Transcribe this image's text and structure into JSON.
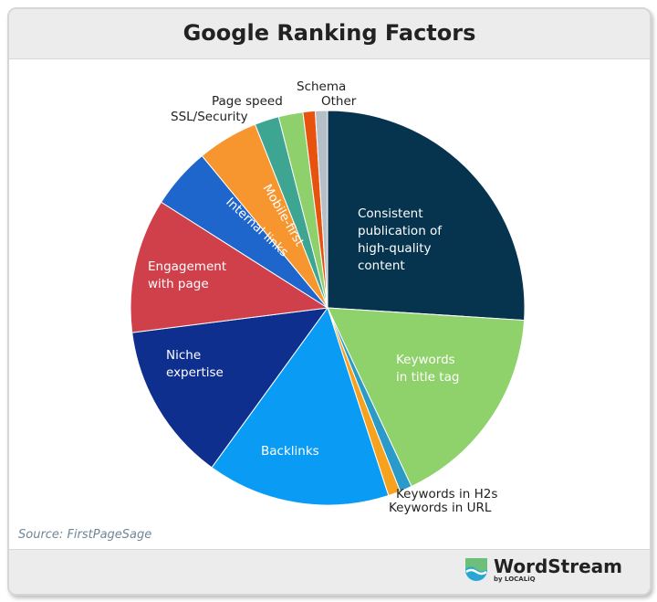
{
  "chart_data": {
    "type": "pie",
    "title": "Google Ranking Factors",
    "source": "Source: FirstPageSage",
    "start_angle": "12 o'clock, clockwise",
    "slices": [
      {
        "label": "Consistent publication of high-quality content",
        "value": 26,
        "color": "#06344f",
        "label_position": "inside"
      },
      {
        "label": "Keywords in title tag",
        "value": 17,
        "color": "#8fd16b",
        "label_position": "inside"
      },
      {
        "label": "Keywords in H2s",
        "value": 1,
        "color": "#2a9bc8",
        "label_position": "outside"
      },
      {
        "label": "Keywords in URL",
        "value": 1,
        "color": "#f7a21e",
        "label_position": "outside"
      },
      {
        "label": "Backlinks",
        "value": 15,
        "color": "#0a9cf5",
        "label_position": "inside"
      },
      {
        "label": "Niche expertise",
        "value": 13,
        "color": "#0f2f8f",
        "label_position": "inside"
      },
      {
        "label": "Engagement with page",
        "value": 11,
        "color": "#d0404b",
        "label_position": "inside"
      },
      {
        "label": "Internal links",
        "value": 5,
        "color": "#1f66cc",
        "label_position": "inside"
      },
      {
        "label": "Mobile-first",
        "value": 5,
        "color": "#f7962f",
        "label_position": "inside"
      },
      {
        "label": "SSL/Security",
        "value": 2,
        "color": "#3da592",
        "label_position": "outside"
      },
      {
        "label": "Page speed",
        "value": 2,
        "color": "#8ed06b",
        "label_position": "outside"
      },
      {
        "label": "Schema",
        "value": 1,
        "color": "#e8520f",
        "label_position": "outside"
      },
      {
        "label": "Other",
        "value": 1,
        "color": "#b5bfc8",
        "label_position": "outside"
      }
    ]
  },
  "branding": {
    "logo": "WordStream",
    "sub": "by LOCALiQ"
  }
}
